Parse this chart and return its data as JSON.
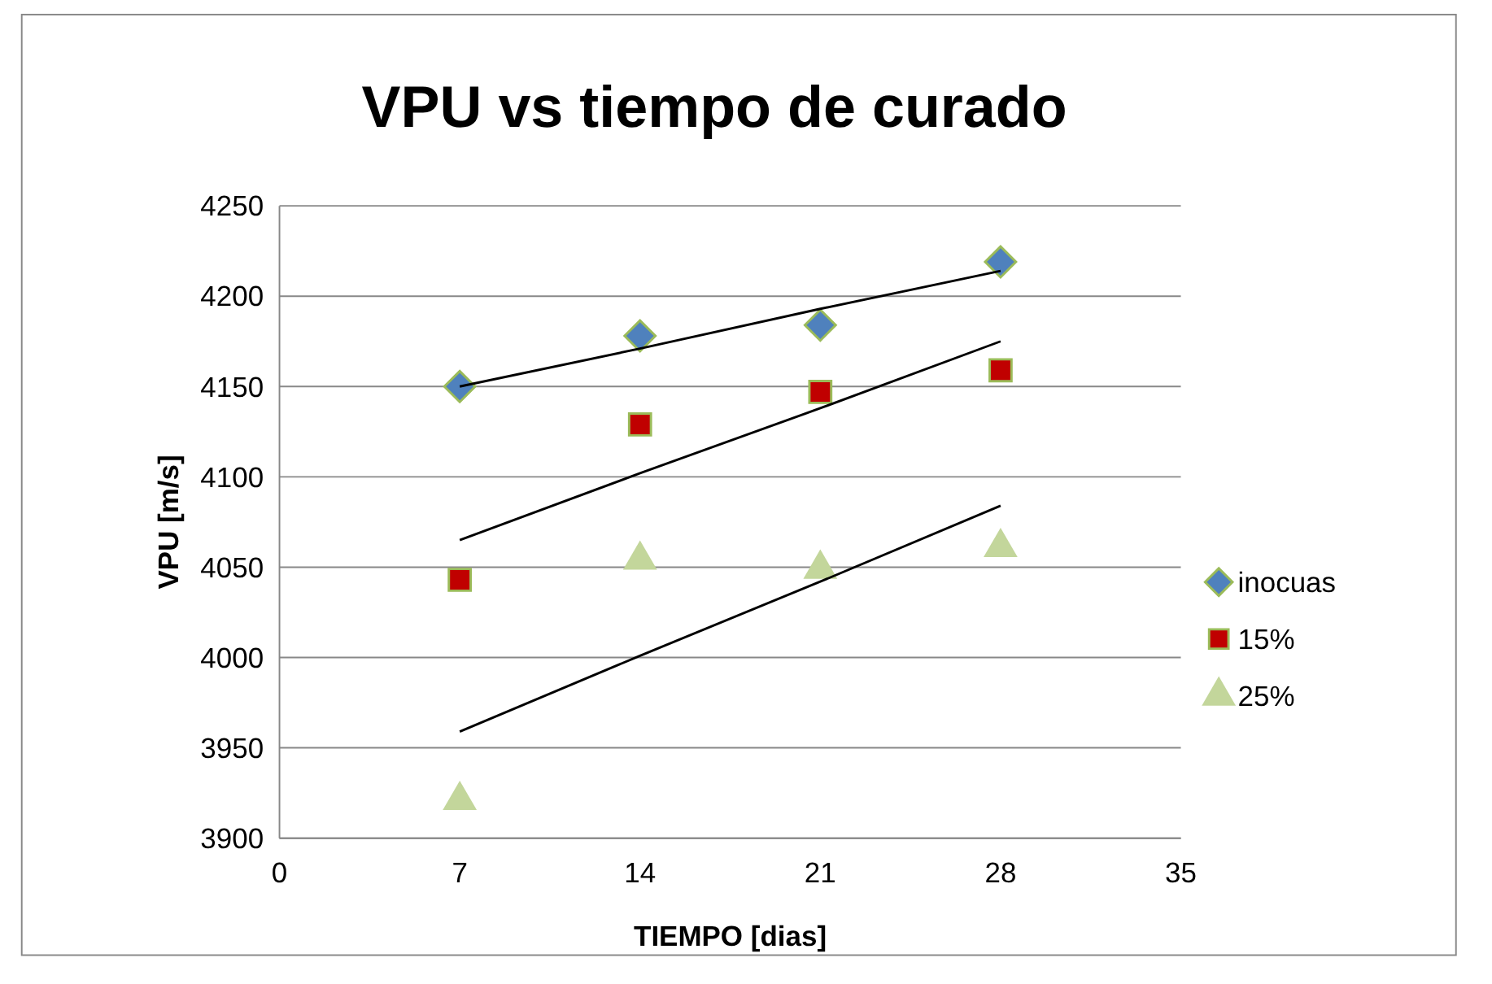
{
  "chart_data": {
    "type": "scatter",
    "title": "VPU vs tiempo de curado",
    "xlabel": "TIEMPO [dias]",
    "ylabel": "VPU [m/s]",
    "x": [
      7,
      14,
      21,
      28
    ],
    "series": [
      {
        "name": "inocuas",
        "color": "#4f81bd",
        "marker": "diamond",
        "values": [
          4150,
          4178,
          4184,
          4219
        ]
      },
      {
        "name": "15%",
        "color": "#c00000",
        "marker": "square",
        "values": [
          4043,
          4129,
          4147,
          4159
        ]
      },
      {
        "name": "25%",
        "color": "#c3d69b",
        "marker": "triangle",
        "values": [
          3921,
          4054,
          4049,
          4061
        ]
      },
      {
        "type": "line",
        "color": "#000000",
        "marker": "none",
        "values": [
          4150,
          4171,
          4193,
          4214
        ]
      },
      {
        "type": "line",
        "color": "#000000",
        "marker": "none",
        "values": [
          4065,
          4102,
          4138,
          4175
        ]
      },
      {
        "type": "line",
        "color": "#000000",
        "marker": "none",
        "values": [
          3959,
          4001,
          4042,
          4084
        ]
      }
    ],
    "xlim": [
      0,
      35
    ],
    "xticks": [
      0,
      7,
      14,
      21,
      28,
      35
    ],
    "ylim": [
      3900,
      4250
    ],
    "yticks": [
      3900,
      3950,
      4000,
      4050,
      4100,
      4150,
      4200,
      4250
    ],
    "grid": "y",
    "legend": "right"
  }
}
